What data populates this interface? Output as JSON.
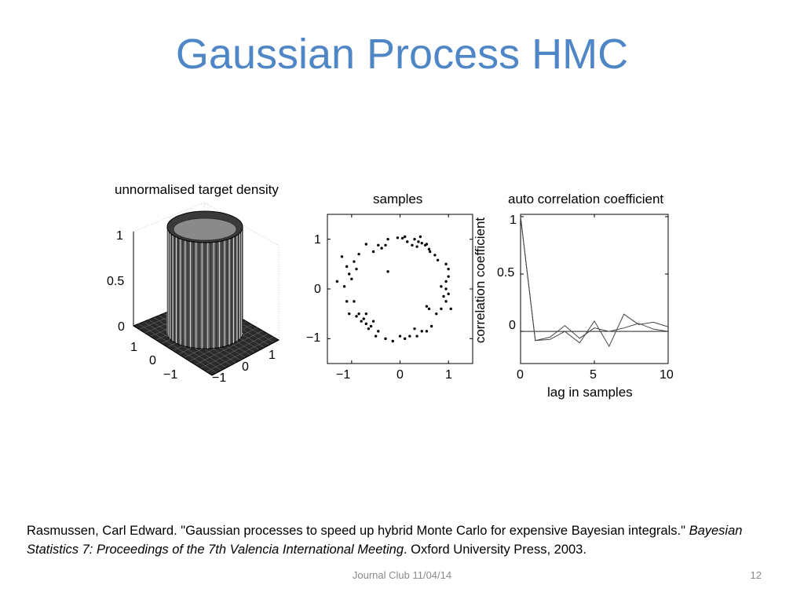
{
  "slide": {
    "title": "Gaussian Process HMC",
    "footer_center": "Journal Club 11/04/14",
    "page_number": "12"
  },
  "citation": {
    "part1": "Rasmussen, Carl Edward. \"Gaussian processes to speed up hybrid Monte Carlo for expensive Bayesian integrals.\"",
    "journal": "Bayesian Statistics 7: Proceedings of the 7th Valencia International Meeting",
    "part2": ". Oxford University Press, 2003."
  },
  "chart_data": [
    {
      "type": "surface3d",
      "title": "unnormalised target density",
      "z_ticks": [
        "0",
        "0.5",
        "1"
      ],
      "y_ticks": [
        "1",
        "0",
        "−1"
      ],
      "x_ticks": [
        "−1",
        "0",
        "1"
      ],
      "zlim": [
        0,
        1
      ],
      "description_shape": "ring-shaped plateau of height 1 around the origin"
    },
    {
      "type": "scatter",
      "title": "samples",
      "x_ticks": [
        "−1",
        "0",
        "1"
      ],
      "y_ticks": [
        "1",
        "0",
        "−1"
      ],
      "xlim": [
        -1.5,
        1.5
      ],
      "ylim": [
        -1.5,
        1.5
      ],
      "points": [
        [
          0.72,
          0.68
        ],
        [
          0.78,
          0.58
        ],
        [
          0.62,
          0.75
        ],
        [
          0.52,
          0.88
        ],
        [
          0.45,
          0.92
        ],
        [
          0.38,
          0.95
        ],
        [
          0.3,
          1.0
        ],
        [
          0.42,
          1.05
        ],
        [
          0.55,
          0.9
        ],
        [
          0.6,
          0.8
        ],
        [
          0.1,
          1.05
        ],
        [
          0.05,
          1.02
        ],
        [
          -0.05,
          1.03
        ],
        [
          -0.25,
          1.0
        ],
        [
          0.35,
          0.85
        ],
        [
          0.15,
          0.95
        ],
        [
          0.25,
          0.88
        ],
        [
          -0.3,
          0.88
        ],
        [
          -0.38,
          0.82
        ],
        [
          -0.45,
          0.88
        ],
        [
          -0.55,
          0.75
        ],
        [
          -0.7,
          0.9
        ],
        [
          -0.85,
          0.7
        ],
        [
          -1.2,
          0.65
        ],
        [
          -0.95,
          0.55
        ],
        [
          -0.9,
          0.4
        ],
        [
          -1.1,
          0.45
        ],
        [
          -1.05,
          0.3
        ],
        [
          -1.3,
          0.15
        ],
        [
          -1.15,
          0.05
        ],
        [
          -1.0,
          0.2
        ],
        [
          -1.1,
          -0.25
        ],
        [
          -0.95,
          -0.25
        ],
        [
          -1.05,
          -0.5
        ],
        [
          -0.9,
          -0.55
        ],
        [
          -0.8,
          -0.65
        ],
        [
          -0.75,
          -0.6
        ],
        [
          -0.7,
          -0.7
        ],
        [
          -0.65,
          -0.8
        ],
        [
          -0.6,
          -0.75
        ],
        [
          -0.55,
          -0.65
        ],
        [
          -0.85,
          -0.5
        ],
        [
          -0.7,
          -0.5
        ],
        [
          -0.45,
          -0.85
        ],
        [
          -0.5,
          -0.95
        ],
        [
          -0.3,
          -1.0
        ],
        [
          -0.15,
          -1.05
        ],
        [
          0.0,
          -0.95
        ],
        [
          0.1,
          -1.0
        ],
        [
          0.2,
          -0.95
        ],
        [
          0.3,
          -0.8
        ],
        [
          0.35,
          -0.95
        ],
        [
          0.45,
          -0.85
        ],
        [
          0.55,
          -0.85
        ],
        [
          0.65,
          -0.75
        ],
        [
          0.75,
          -0.5
        ],
        [
          0.6,
          -0.4
        ],
        [
          0.55,
          -0.35
        ],
        [
          0.85,
          -0.4
        ],
        [
          0.95,
          -0.25
        ],
        [
          0.9,
          -0.15
        ],
        [
          1.0,
          -0.1
        ],
        [
          0.95,
          0.0
        ],
        [
          0.85,
          0.05
        ],
        [
          0.95,
          0.15
        ],
        [
          1.0,
          0.25
        ],
        [
          1.0,
          0.4
        ],
        [
          0.95,
          0.5
        ],
        [
          1.05,
          -0.4
        ],
        [
          -0.25,
          0.35
        ]
      ]
    },
    {
      "type": "line",
      "title": "auto correlation coefficient",
      "xlabel": "lag in samples",
      "ylabel": "correlation coefficient",
      "x_ticks": [
        "0",
        "5",
        "10"
      ],
      "y_ticks": [
        "1",
        "0.5",
        "0"
      ],
      "xlim": [
        0,
        10
      ],
      "ylim": [
        -0.28,
        1.02
      ],
      "zero_line": true,
      "series": [
        {
          "x": [
            0,
            1,
            2,
            3,
            4,
            5,
            6,
            7,
            8,
            9,
            10
          ],
          "values": [
            1.0,
            -0.08,
            -0.05,
            0.05,
            -0.06,
            0.03,
            0.0,
            0.03,
            0.07,
            0.02,
            0.0
          ]
        },
        {
          "x": [
            0,
            1,
            2,
            3,
            4,
            5,
            6,
            7,
            8,
            9,
            10
          ],
          "values": [
            1.0,
            -0.08,
            -0.07,
            0.0,
            -0.1,
            0.09,
            -0.13,
            0.15,
            0.06,
            0.08,
            0.04
          ]
        }
      ]
    }
  ]
}
